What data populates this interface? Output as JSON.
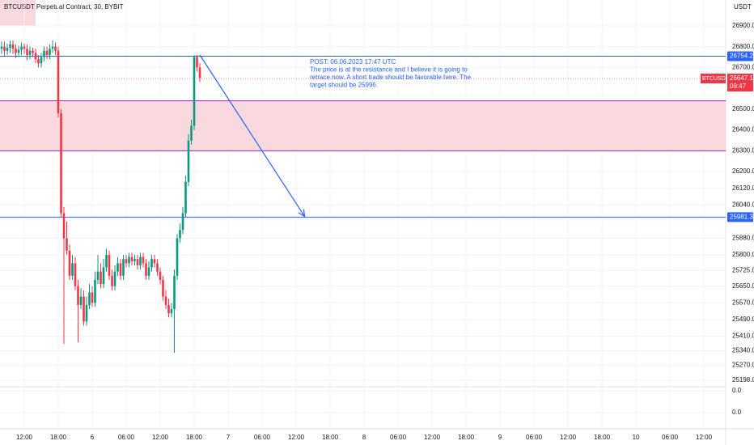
{
  "chart_data": {
    "type": "candlestick",
    "title": "BTCUSDT Perpetual Contract, 30, BYBIT",
    "currency": "USDT",
    "up_color": "#089981",
    "down_color": "#f23645",
    "open": [
      26790,
      26800,
      26780,
      26795,
      26810,
      26790,
      26770,
      26785,
      26800,
      26790,
      26760,
      26780,
      26770,
      26740,
      26720,
      26750,
      26780,
      26760,
      26790,
      26800,
      26780,
      26480,
      26000,
      25880,
      25820,
      25700,
      25760,
      25650,
      25560,
      25600,
      25480,
      25560,
      25620,
      25570,
      25680,
      25720,
      25660,
      25740,
      25800,
      25700,
      25650,
      25720,
      25760,
      25700,
      25780,
      25760,
      25790,
      25770,
      25780,
      25750,
      25790,
      25760,
      25700,
      25740,
      25780,
      25760,
      25720,
      25680,
      25600,
      25560,
      25520,
      25540,
      25700,
      25880,
      25920,
      26000,
      26150,
      26350,
      26420,
      26750,
      26700
    ],
    "high": [
      26825,
      26825,
      26815,
      26830,
      26830,
      26810,
      26805,
      26820,
      26815,
      26810,
      26800,
      26795,
      26790,
      26760,
      26770,
      26800,
      26800,
      26810,
      26830,
      26820,
      26800,
      26500,
      26030,
      25960,
      25850,
      25800,
      25790,
      25680,
      25640,
      25630,
      25600,
      25660,
      25650,
      25720,
      25800,
      25760,
      25780,
      25830,
      25820,
      25730,
      25750,
      25790,
      25780,
      25800,
      25800,
      25810,
      25810,
      25800,
      25800,
      25810,
      25810,
      25780,
      25770,
      25800,
      25800,
      25780,
      25740,
      25700,
      25630,
      25590,
      25570,
      25730,
      25900,
      25950,
      26030,
      26180,
      26380,
      26450,
      26760,
      26760,
      26720
    ],
    "low": [
      26765,
      26755,
      26760,
      26770,
      26765,
      26745,
      26750,
      26760,
      26765,
      26735,
      26740,
      26750,
      26720,
      26700,
      26700,
      26730,
      26740,
      26740,
      26770,
      26760,
      26460,
      25980,
      25373,
      25800,
      25680,
      25680,
      25630,
      25380,
      25540,
      25460,
      25460,
      25540,
      25550,
      25550,
      25660,
      25640,
      25640,
      25720,
      25680,
      25630,
      25630,
      25700,
      25680,
      25680,
      25740,
      25740,
      25750,
      25750,
      25730,
      25730,
      25740,
      25680,
      25680,
      25720,
      25740,
      25700,
      25660,
      25580,
      25540,
      25500,
      25500,
      25330,
      25680,
      25860,
      25900,
      25980,
      26130,
      26330,
      26400,
      26680,
      26630
    ],
    "close": [
      26800,
      26780,
      26795,
      26810,
      26790,
      26770,
      26785,
      26800,
      26790,
      26760,
      26780,
      26770,
      26740,
      26720,
      26750,
      26780,
      26760,
      26790,
      26800,
      26780,
      26480,
      26000,
      25880,
      25820,
      25700,
      25760,
      25650,
      25560,
      25600,
      25480,
      25560,
      25620,
      25570,
      25680,
      25720,
      25660,
      25740,
      25800,
      25700,
      25650,
      25720,
      25760,
      25700,
      25780,
      25760,
      25790,
      25770,
      25780,
      25750,
      25790,
      25760,
      25700,
      25740,
      25780,
      25760,
      25720,
      25680,
      25600,
      25560,
      25520,
      25540,
      25700,
      25880,
      25920,
      26000,
      26150,
      26350,
      26420,
      26750,
      26700,
      26650
    ],
    "xlim": [
      -0.57,
      255.7
    ],
    "xticks": [
      {
        "value": 8,
        "label": "12:00"
      },
      {
        "value": 20,
        "label": "18:00"
      },
      {
        "value": 32,
        "label": "6"
      },
      {
        "value": 44,
        "label": "06:00"
      },
      {
        "value": 56,
        "label": "12:00"
      },
      {
        "value": 68,
        "label": "18:00"
      },
      {
        "value": 80,
        "label": "7"
      },
      {
        "value": 92,
        "label": "06:00"
      },
      {
        "value": 104,
        "label": "12:00"
      },
      {
        "value": 116,
        "label": "18:00"
      },
      {
        "value": 128,
        "label": "8"
      },
      {
        "value": 140,
        "label": "06:00"
      },
      {
        "value": 152,
        "label": "12:00"
      },
      {
        "value": 164,
        "label": "18:00"
      },
      {
        "value": 176,
        "label": "9"
      },
      {
        "value": 188,
        "label": "06:00"
      },
      {
        "value": 200,
        "label": "12:00"
      },
      {
        "value": 212,
        "label": "18:00"
      },
      {
        "value": 224,
        "label": "10"
      },
      {
        "value": 236,
        "label": "06:00"
      },
      {
        "value": 248,
        "label": "12:00"
      }
    ],
    "ylim": [
      25167,
      27024
    ],
    "yticks": [
      {
        "value": 26900,
        "label": "26900.0"
      },
      {
        "value": 26800,
        "label": "26800.0"
      },
      {
        "value": 26700,
        "label": "26700.0"
      },
      {
        "value": 26500,
        "label": "26500.0"
      },
      {
        "value": 26400,
        "label": "26400.0"
      },
      {
        "value": 26300,
        "label": "26300.0"
      },
      {
        "value": 26200,
        "label": "26200.0"
      },
      {
        "value": 26120,
        "label": "26120.0"
      },
      {
        "value": 26040,
        "label": "26040.0"
      },
      {
        "value": 25880,
        "label": "25880.0"
      },
      {
        "value": 25800,
        "label": "25800.0"
      },
      {
        "value": 25725,
        "label": "25725.0"
      },
      {
        "value": 25650,
        "label": "25650.0"
      },
      {
        "value": 25570,
        "label": "25570.0"
      },
      {
        "value": 25490,
        "label": "25490.0"
      },
      {
        "value": 25410,
        "label": "25410.0"
      },
      {
        "value": 25340,
        "label": "25340.0"
      },
      {
        "value": 25270,
        "label": "25270.0"
      },
      {
        "value": 25198,
        "label": "25198.0"
      }
    ],
    "levels": [
      {
        "value": 26754.2,
        "color": "#2962ff"
      },
      {
        "value": 25981.3,
        "color": "#2962ff"
      }
    ],
    "zone": {
      "from": 26300,
      "to": 26540,
      "color": "#f9d9de",
      "border": "#9c27b0"
    },
    "last_price": {
      "symbol": "BTCUSDT.P",
      "value": 26647.1,
      "countdown": "09:47",
      "color": "#f23645"
    },
    "arrow": {
      "x": [
        70,
        107
      ],
      "y": [
        26760,
        25985
      ],
      "color": "#2962ff"
    },
    "annotation": [
      "POST: 06.06.2023 17:47 UTC",
      "The price is at the resistance and I believe it is going to",
      "retrace now. A short trade should be favorable here. The",
      "target should be 25996."
    ],
    "lower_pane_ticks": [
      {
        "value": 0,
        "label": "0.0"
      },
      {
        "value": 0,
        "label": "0.0"
      }
    ],
    "grid": true
  }
}
